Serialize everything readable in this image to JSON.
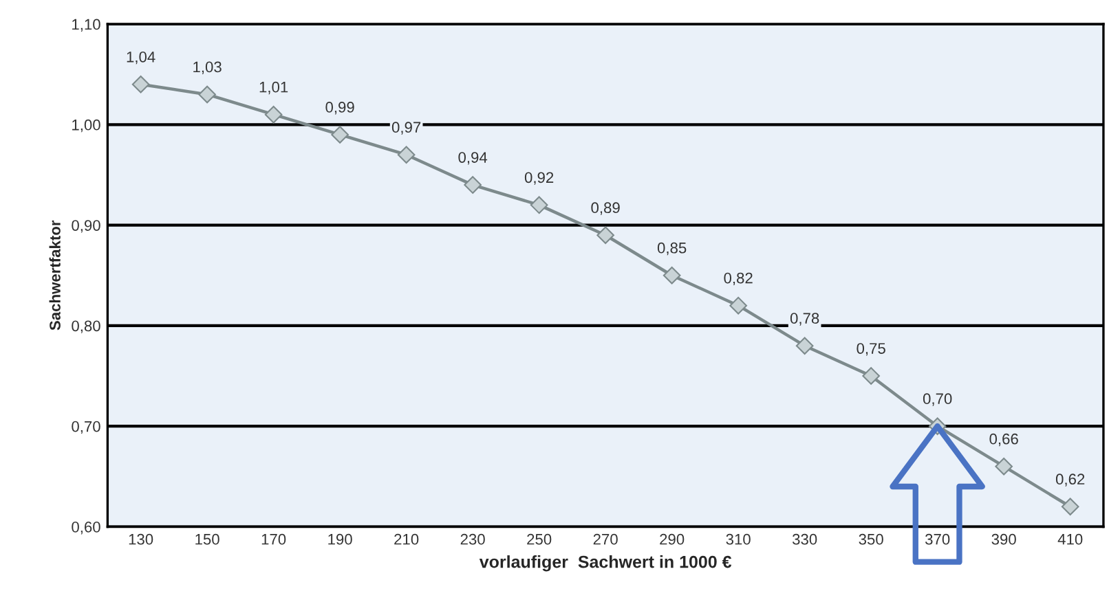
{
  "chart_data": {
    "type": "line",
    "xlabel": "vorlaufiger  Sachwert in 1000 €",
    "ylabel": "Sachwertfaktor",
    "categories": [
      "130",
      "150",
      "170",
      "190",
      "210",
      "230",
      "250",
      "270",
      "290",
      "310",
      "330",
      "350",
      "370",
      "390",
      "410"
    ],
    "series": [
      {
        "color": "#7d8a8c",
        "values": [
          1.04,
          1.03,
          1.01,
          0.99,
          0.97,
          0.94,
          0.92,
          0.89,
          0.85,
          0.82,
          0.78,
          0.75,
          0.7,
          0.66,
          0.62
        ],
        "value_labels": [
          "1,04",
          "1,03",
          "1,01",
          "0,99",
          "0,97",
          "0,94",
          "0,92",
          "0,89",
          "0,85",
          "0,82",
          "0,78",
          "0,75",
          "0,70",
          "0,66",
          "0,62"
        ]
      }
    ],
    "ylim": [
      0.6,
      1.1
    ],
    "yticks": [
      {
        "value": 0.6,
        "label": "0,60"
      },
      {
        "value": 0.7,
        "label": "0,70"
      },
      {
        "value": 0.8,
        "label": "0,80"
      },
      {
        "value": 0.9,
        "label": "0,90"
      },
      {
        "value": 1.0,
        "label": "1,00"
      },
      {
        "value": 1.1,
        "label": "1,10"
      }
    ],
    "grid": "y",
    "legend": false,
    "marker": "diamond",
    "line_style": "solid"
  }
}
